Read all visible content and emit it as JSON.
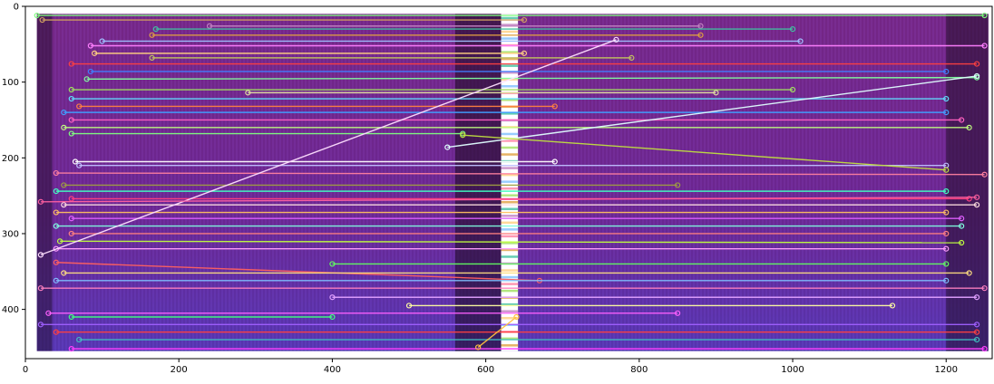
{
  "chart_data": {
    "type": "image",
    "title": "",
    "xlabel": "",
    "ylabel": "",
    "xlim": [
      0,
      1260
    ],
    "ylim": [
      465,
      0
    ],
    "x_ticks": [
      0,
      200,
      400,
      600,
      800,
      1000,
      1200
    ],
    "y_ticks": [
      0,
      100,
      200,
      300,
      400
    ],
    "x_tick_labels": [
      "0",
      "200",
      "400",
      "600",
      "800",
      "1000",
      "1200"
    ],
    "y_tick_labels": [
      "0",
      "100",
      "200",
      "300",
      "400"
    ],
    "image_extent": {
      "x": [
        15,
        1255
      ],
      "y": [
        10,
        455
      ]
    },
    "white_band": {
      "x": [
        620,
        642
      ]
    },
    "grid": false,
    "colors": {
      "background_dark": "#1a0a1e",
      "spectrogram_magenta": "#8a2a8a",
      "spectrogram_blue": "#3a3ac0",
      "white_band": "#ffffff"
    },
    "match_lines": [
      {
        "x1": 15,
        "y1": 12,
        "x2": 1250,
        "y2": 12,
        "color": "#7fff7f"
      },
      {
        "x1": 22,
        "y1": 18,
        "x2": 650,
        "y2": 18,
        "color": "#d0a060"
      },
      {
        "x1": 240,
        "y1": 26,
        "x2": 880,
        "y2": 26,
        "color": "#c080c0"
      },
      {
        "x1": 170,
        "y1": 30,
        "x2": 1000,
        "y2": 30,
        "color": "#40c0a0"
      },
      {
        "x1": 165,
        "y1": 38,
        "x2": 880,
        "y2": 38,
        "color": "#e0a040"
      },
      {
        "x1": 100,
        "y1": 46,
        "x2": 1010,
        "y2": 46,
        "color": "#a0c0ff"
      },
      {
        "x1": 85,
        "y1": 52,
        "x2": 1250,
        "y2": 52,
        "color": "#ff80ff"
      },
      {
        "x1": 90,
        "y1": 62,
        "x2": 650,
        "y2": 62,
        "color": "#ffd080"
      },
      {
        "x1": 165,
        "y1": 68,
        "x2": 790,
        "y2": 68,
        "color": "#c0c060"
      },
      {
        "x1": 60,
        "y1": 76,
        "x2": 1240,
        "y2": 76,
        "color": "#ff4040"
      },
      {
        "x1": 85,
        "y1": 86,
        "x2": 1200,
        "y2": 86,
        "color": "#4080ff"
      },
      {
        "x1": 80,
        "y1": 96,
        "x2": 1240,
        "y2": 94,
        "color": "#80ffa0"
      },
      {
        "x1": 60,
        "y1": 110,
        "x2": 1000,
        "y2": 110,
        "color": "#a0e060"
      },
      {
        "x1": 290,
        "y1": 114,
        "x2": 900,
        "y2": 114,
        "color": "#e0e0a0"
      },
      {
        "x1": 60,
        "y1": 122,
        "x2": 1200,
        "y2": 122,
        "color": "#60e0ff"
      },
      {
        "x1": 70,
        "y1": 132,
        "x2": 690,
        "y2": 132,
        "color": "#ff8040"
      },
      {
        "x1": 50,
        "y1": 140,
        "x2": 1200,
        "y2": 140,
        "color": "#40a0ff"
      },
      {
        "x1": 60,
        "y1": 150,
        "x2": 1220,
        "y2": 150,
        "color": "#ff60c0"
      },
      {
        "x1": 50,
        "y1": 160,
        "x2": 1230,
        "y2": 160,
        "color": "#c0ff80"
      },
      {
        "x1": 60,
        "y1": 168,
        "x2": 570,
        "y2": 168,
        "color": "#80ff80"
      },
      {
        "x1": 65,
        "y1": 205,
        "x2": 690,
        "y2": 205,
        "color": "#ffffff"
      },
      {
        "x1": 70,
        "y1": 210,
        "x2": 1200,
        "y2": 210,
        "color": "#c0c0ff"
      },
      {
        "x1": 40,
        "y1": 220,
        "x2": 1250,
        "y2": 222,
        "color": "#ff80a0"
      },
      {
        "x1": 50,
        "y1": 236,
        "x2": 850,
        "y2": 236,
        "color": "#a0a040"
      },
      {
        "x1": 40,
        "y1": 244,
        "x2": 1200,
        "y2": 244,
        "color": "#40ffc0"
      },
      {
        "x1": 60,
        "y1": 254,
        "x2": 1230,
        "y2": 254,
        "color": "#ff4080"
      },
      {
        "x1": 50,
        "y1": 262,
        "x2": 1240,
        "y2": 262,
        "color": "#ffe0e0"
      },
      {
        "x1": 40,
        "y1": 272,
        "x2": 1200,
        "y2": 272,
        "color": "#ffc060"
      },
      {
        "x1": 60,
        "y1": 280,
        "x2": 1220,
        "y2": 280,
        "color": "#e060ff"
      },
      {
        "x1": 40,
        "y1": 290,
        "x2": 1220,
        "y2": 290,
        "color": "#80ffe0"
      },
      {
        "x1": 60,
        "y1": 300,
        "x2": 1200,
        "y2": 300,
        "color": "#ff8080"
      },
      {
        "x1": 45,
        "y1": 310,
        "x2": 1220,
        "y2": 312,
        "color": "#c0ff40"
      },
      {
        "x1": 40,
        "y1": 320,
        "x2": 1200,
        "y2": 320,
        "color": "#ffa0ff"
      },
      {
        "x1": 40,
        "y1": 338,
        "x2": 670,
        "y2": 362,
        "color": "#ff6060"
      },
      {
        "x1": 400,
        "y1": 340,
        "x2": 1200,
        "y2": 340,
        "color": "#60ff60"
      },
      {
        "x1": 50,
        "y1": 352,
        "x2": 1230,
        "y2": 352,
        "color": "#ffe080"
      },
      {
        "x1": 40,
        "y1": 362,
        "x2": 1200,
        "y2": 362,
        "color": "#80c0ff"
      },
      {
        "x1": 20,
        "y1": 372,
        "x2": 1250,
        "y2": 372,
        "color": "#ff80c0"
      },
      {
        "x1": 400,
        "y1": 384,
        "x2": 1240,
        "y2": 384,
        "color": "#e0a0ff"
      },
      {
        "x1": 500,
        "y1": 395,
        "x2": 1130,
        "y2": 395,
        "color": "#ffffa0"
      },
      {
        "x1": 30,
        "y1": 405,
        "x2": 850,
        "y2": 405,
        "color": "#ff60ff"
      },
      {
        "x1": 60,
        "y1": 410,
        "x2": 400,
        "y2": 410,
        "color": "#40ff80"
      },
      {
        "x1": 20,
        "y1": 420,
        "x2": 1240,
        "y2": 420,
        "color": "#a060ff"
      },
      {
        "x1": 40,
        "y1": 430,
        "x2": 1240,
        "y2": 430,
        "color": "#ff4040"
      },
      {
        "x1": 70,
        "y1": 440,
        "x2": 1240,
        "y2": 440,
        "color": "#40c0c0"
      },
      {
        "x1": 60,
        "y1": 452,
        "x2": 1250,
        "y2": 452,
        "color": "#ff40ff"
      },
      {
        "x1": 20,
        "y1": 328,
        "x2": 770,
        "y2": 44,
        "color": "#ffe0ff"
      },
      {
        "x1": 550,
        "y1": 186,
        "x2": 1240,
        "y2": 92,
        "color": "#e0ffff"
      },
      {
        "x1": 20,
        "y1": 258,
        "x2": 1240,
        "y2": 252,
        "color": "#ff60a0"
      },
      {
        "x1": 570,
        "y1": 170,
        "x2": 1200,
        "y2": 216,
        "color": "#c0e040"
      },
      {
        "x1": 590,
        "y1": 450,
        "x2": 640,
        "y2": 410,
        "color": "#ffc040"
      }
    ]
  }
}
